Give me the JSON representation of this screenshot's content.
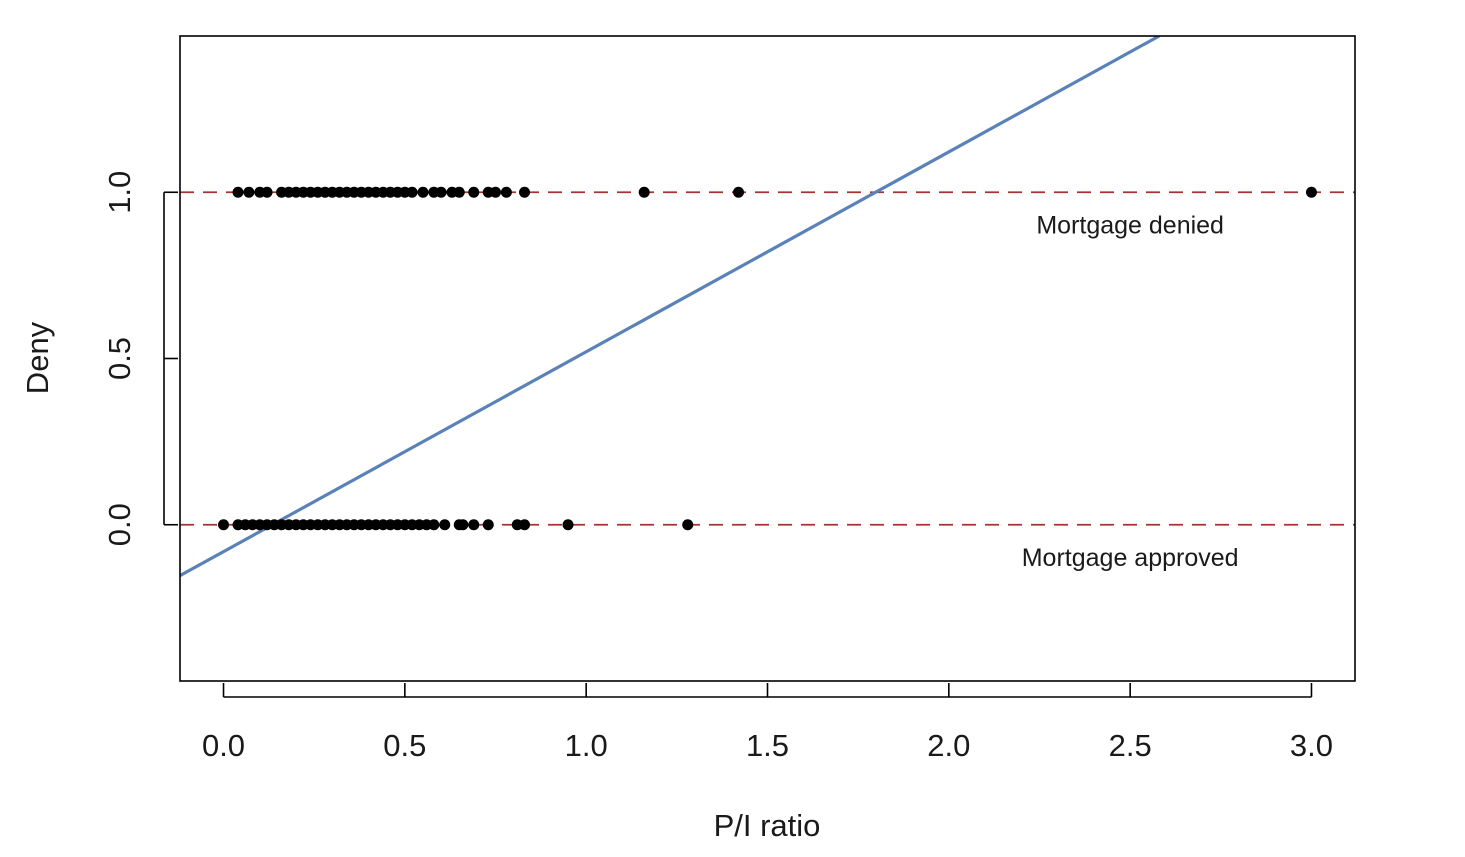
{
  "chart_data": {
    "type": "scatter",
    "title": "",
    "xlabel": "P/I ratio",
    "ylabel": "Deny",
    "xlim": [
      -0.12,
      3.12
    ],
    "ylim": [
      -0.47,
      1.47
    ],
    "x_ticks": [
      0.0,
      0.5,
      1.0,
      1.5,
      2.0,
      2.5,
      3.0
    ],
    "x_tick_labels": [
      "0.0",
      "0.5",
      "1.0",
      "1.5",
      "2.0",
      "2.5",
      "3.0"
    ],
    "y_ticks": [
      0.0,
      0.5,
      1.0
    ],
    "y_tick_labels": [
      "0.0",
      "0.5",
      "1.0"
    ],
    "grid": false,
    "series": [
      {
        "kind": "points",
        "color": "#000000",
        "points": [
          [
            0.04,
            1
          ],
          [
            0.07,
            1
          ],
          [
            0.1,
            1
          ],
          [
            0.12,
            1
          ],
          [
            0.16,
            1
          ],
          [
            0.18,
            1
          ],
          [
            0.2,
            1
          ],
          [
            0.22,
            1
          ],
          [
            0.24,
            1
          ],
          [
            0.26,
            1
          ],
          [
            0.28,
            1
          ],
          [
            0.3,
            1
          ],
          [
            0.32,
            1
          ],
          [
            0.34,
            1
          ],
          [
            0.36,
            1
          ],
          [
            0.38,
            1
          ],
          [
            0.4,
            1
          ],
          [
            0.42,
            1
          ],
          [
            0.44,
            1
          ],
          [
            0.46,
            1
          ],
          [
            0.48,
            1
          ],
          [
            0.5,
            1
          ],
          [
            0.52,
            1
          ],
          [
            0.55,
            1
          ],
          [
            0.58,
            1
          ],
          [
            0.6,
            1
          ],
          [
            0.63,
            1
          ],
          [
            0.65,
            1
          ],
          [
            0.69,
            1
          ],
          [
            0.73,
            1
          ],
          [
            0.75,
            1
          ],
          [
            0.78,
            1
          ],
          [
            0.83,
            1
          ],
          [
            1.16,
            1
          ],
          [
            1.42,
            1
          ],
          [
            3.0,
            1
          ],
          [
            0.0,
            0
          ],
          [
            0.04,
            0
          ],
          [
            0.06,
            0
          ],
          [
            0.08,
            0
          ],
          [
            0.1,
            0
          ],
          [
            0.12,
            0
          ],
          [
            0.14,
            0
          ],
          [
            0.16,
            0
          ],
          [
            0.18,
            0
          ],
          [
            0.2,
            0
          ],
          [
            0.22,
            0
          ],
          [
            0.24,
            0
          ],
          [
            0.26,
            0
          ],
          [
            0.28,
            0
          ],
          [
            0.3,
            0
          ],
          [
            0.32,
            0
          ],
          [
            0.34,
            0
          ],
          [
            0.36,
            0
          ],
          [
            0.38,
            0
          ],
          [
            0.4,
            0
          ],
          [
            0.42,
            0
          ],
          [
            0.44,
            0
          ],
          [
            0.46,
            0
          ],
          [
            0.48,
            0
          ],
          [
            0.5,
            0
          ],
          [
            0.52,
            0
          ],
          [
            0.54,
            0
          ],
          [
            0.56,
            0
          ],
          [
            0.58,
            0
          ],
          [
            0.61,
            0
          ],
          [
            0.65,
            0
          ],
          [
            0.66,
            0
          ],
          [
            0.69,
            0
          ],
          [
            0.73,
            0
          ],
          [
            0.81,
            0
          ],
          [
            0.83,
            0
          ],
          [
            0.95,
            0
          ],
          [
            1.28,
            0
          ]
        ]
      },
      {
        "kind": "line",
        "color": "#5a82b8",
        "points": [
          [
            -0.12,
            -0.153
          ],
          [
            2.58,
            1.47
          ]
        ]
      },
      {
        "kind": "hline",
        "color": "#a83232",
        "style": "dashed",
        "y": [
          0,
          1
        ]
      }
    ],
    "annotations": [
      {
        "text": "Mortgage denied",
        "x": 2.5,
        "y": 0.9
      },
      {
        "text": "Mortgage approved",
        "x": 2.5,
        "y": -0.1
      }
    ]
  }
}
